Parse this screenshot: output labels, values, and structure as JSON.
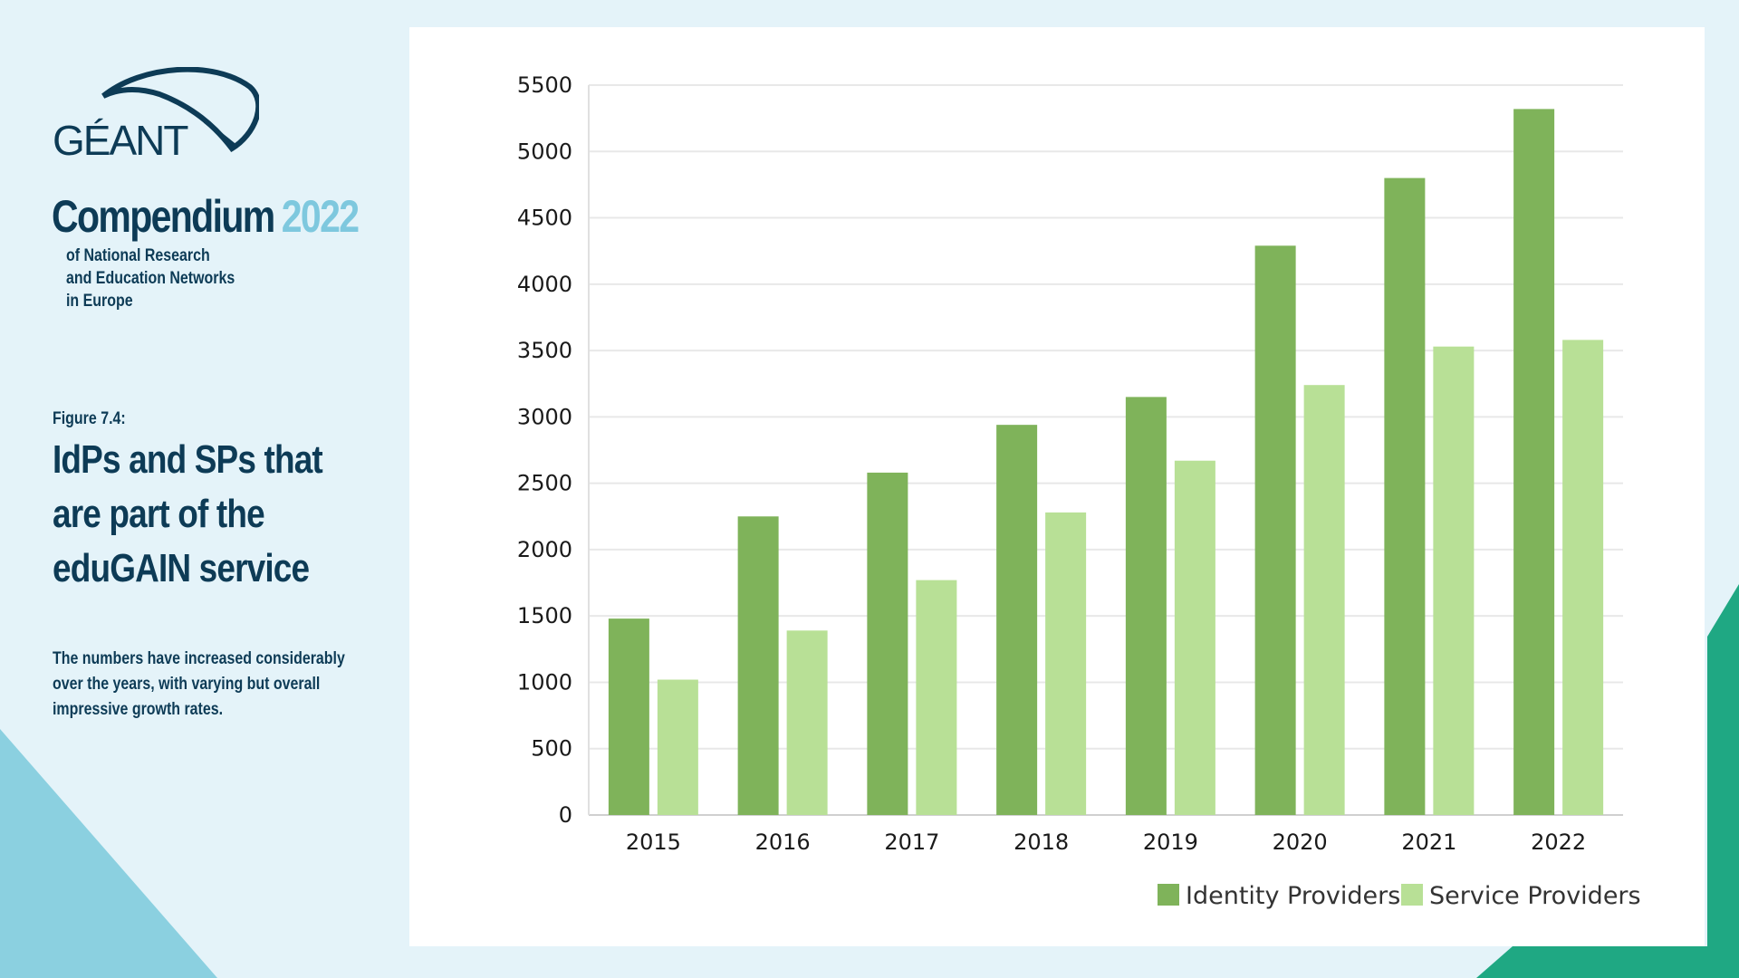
{
  "branding": {
    "logo_text": "GÉANT",
    "compendium_word": "Compendium",
    "compendium_year": "2022",
    "compendium_subtitle": "of National Research\nand Education Networks\nin Europe"
  },
  "figure": {
    "label": "Figure 7.4:",
    "title": "IdPs and SPs that are part of the eduGAIN service",
    "description": "The numbers have increased considerably over the years, with varying but overall impressive growth rates."
  },
  "colors": {
    "identity_providers": "#7fb35a",
    "service_providers": "#b8e096",
    "brand_navy": "#0d3b56",
    "brand_light_blue": "#7ec8de",
    "accent_teal": "#1fa883"
  },
  "chart_data": {
    "type": "bar",
    "categories": [
      "2015",
      "2016",
      "2017",
      "2018",
      "2019",
      "2020",
      "2021",
      "2022"
    ],
    "series": [
      {
        "name": "Identity Providers",
        "values": [
          1480,
          2250,
          2580,
          2940,
          3150,
          4290,
          4800,
          5320
        ]
      },
      {
        "name": "Service Providers",
        "values": [
          1020,
          1390,
          1770,
          2280,
          2670,
          3240,
          3530,
          3580
        ]
      }
    ],
    "ylim": [
      0,
      5500
    ],
    "yticks": [
      0,
      500,
      1000,
      1500,
      2000,
      2500,
      3000,
      3500,
      4000,
      4500,
      5000,
      5500
    ],
    "grid": true,
    "legend": "bottom-right"
  }
}
